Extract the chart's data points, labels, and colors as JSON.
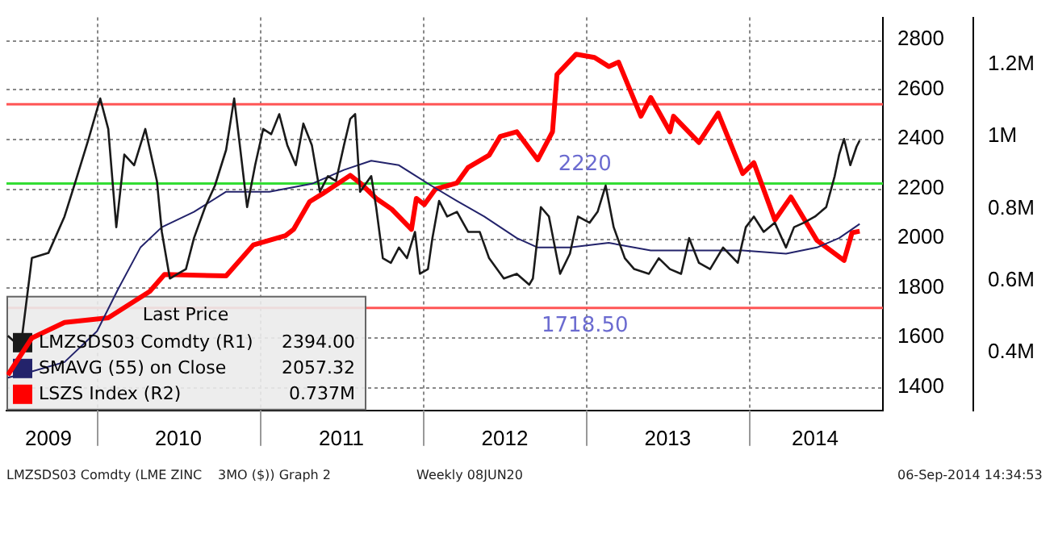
{
  "chart_data": {
    "type": "line",
    "legend_title": "Last Price",
    "legend": "bottom left",
    "grid": true,
    "annotations": [
      "2394.00",
      "2057.32",
      "0.737M",
      "LMZSDS03 Comdty (LME ZINC",
      "3MO ($)) Graph 2",
      "Weekly 08JUN20",
      "06-Sep-2014 14:34:53"
    ],
    "xlim": [
      "2009-06-12",
      "2014-10-27"
    ],
    "xticks": [
      {
        "value": "2009-09-14",
        "label": "2009"
      },
      {
        "value": "2010-01-01",
        "label": null
      },
      {
        "value": "2010-07-02",
        "label": "2010"
      },
      {
        "value": "2011-01-01",
        "label": null
      },
      {
        "value": "2011-07-02",
        "label": "2011"
      },
      {
        "value": "2012-01-01",
        "label": null
      },
      {
        "value": "2012-07-02",
        "label": "2012"
      },
      {
        "value": "2013-01-01",
        "label": null
      },
      {
        "value": "2013-07-02",
        "label": "2013"
      },
      {
        "value": "2014-01-01",
        "label": null
      },
      {
        "value": "2014-05-28",
        "label": "2014"
      }
    ],
    "ylim": [
      1305,
      2890
    ],
    "yticks": [
      1400,
      1600,
      1800,
      2000,
      2200,
      2400,
      2600,
      2800
    ],
    "y2lim": [
      0.24,
      1.33
    ],
    "y2ticks": [
      {
        "value": 0.4,
        "label": "0.4M"
      },
      {
        "value": 0.6,
        "label": "0.6M"
      },
      {
        "value": 0.8,
        "label": "0.8M"
      },
      {
        "value": 1,
        "label": "1M"
      },
      {
        "value": 1.2,
        "label": "1.2M"
      }
    ],
    "ref_lines": [
      {
        "axis": "y",
        "value": 2540,
        "color": "#ff5555"
      },
      {
        "axis": "y",
        "value": 2220,
        "label": "2220",
        "color": "#33dd33"
      },
      {
        "axis": "y",
        "value": 1718.5,
        "label": "1718.50",
        "color": "#ff5555"
      }
    ],
    "x": [
      "2009-06-15",
      "2009-07-14",
      "2009-08-08",
      "2009-09-14",
      "2009-10-20",
      "2009-11-14",
      "2009-12-13",
      "2010-01-08",
      "2010-01-26",
      "2010-02-13",
      "2010-03-03",
      "2010-03-25",
      "2010-04-19",
      "2010-05-15",
      "2010-05-26",
      "2010-06-13",
      "2010-07-01",
      "2010-07-19",
      "2010-08-06",
      "2010-08-31",
      "2010-09-22",
      "2010-10-17",
      "2010-11-04",
      "2010-11-15",
      "2010-12-03",
      "2010-12-21",
      "2011-01-08",
      "2011-01-26",
      "2011-02-13",
      "2011-03-03",
      "2011-03-22",
      "2011-04-08",
      "2011-04-27",
      "2011-05-15",
      "2011-06-02",
      "2011-06-20",
      "2011-07-08",
      "2011-07-22",
      "2011-08-02",
      "2011-08-13",
      "2011-09-07",
      "2011-09-18",
      "2011-10-03",
      "2011-10-21",
      "2011-11-08",
      "2011-11-26",
      "2011-12-14",
      "2011-12-25",
      "2012-01-12",
      "2012-01-22",
      "2012-02-06",
      "2012-02-24",
      "2012-03-17",
      "2012-04-11",
      "2012-05-07",
      "2012-05-28",
      "2012-06-30",
      "2012-07-29",
      "2012-08-26",
      "2012-09-03",
      "2012-09-21",
      "2012-10-09",
      "2012-11-03",
      "2012-11-25",
      "2012-12-13",
      "2013-01-08",
      "2013-01-26",
      "2013-02-13",
      "2013-03-03",
      "2013-03-28",
      "2013-04-18",
      "2013-05-21",
      "2013-06-12",
      "2013-07-07",
      "2013-08-01",
      "2013-08-19",
      "2013-09-10",
      "2013-10-05",
      "2013-11-03",
      "2013-12-06",
      "2013-12-24",
      "2014-01-11",
      "2014-02-02",
      "2014-02-27",
      "2014-03-24",
      "2014-04-11",
      "2014-05-03",
      "2014-05-28",
      "2014-06-22",
      "2014-07-11",
      "2014-07-21",
      "2014-08-01",
      "2014-08-15",
      "2014-08-29",
      "2014-09-05"
    ],
    "series": [
      {
        "name": "LMZSDS03 Comdty (R1)",
        "color": "#1a1a1a",
        "values": [
          1606,
          1560,
          1920,
          1940,
          2087,
          2230,
          2400,
          2563,
          2440,
          2044,
          2337,
          2294,
          2440,
          2230,
          2025,
          1837,
          1856,
          1875,
          2000,
          2125,
          2212,
          2356,
          2563,
          2400,
          2125,
          2294,
          2440,
          2419,
          2500,
          2375,
          2294,
          2462,
          2375,
          2187,
          2250,
          2230,
          2375,
          2481,
          2500,
          2187,
          2250,
          2125,
          1919,
          1900,
          1962,
          1919,
          2025,
          1856,
          1875,
          2000,
          2150,
          2087,
          2106,
          2025,
          2025,
          1919,
          1837,
          1856,
          1812,
          1837,
          2125,
          2087,
          1856,
          1937,
          2087,
          2062,
          2106,
          2212,
          2044,
          1919,
          1875,
          1856,
          1919,
          1875,
          1856,
          2000,
          1900,
          1875,
          1962,
          1900,
          2044,
          2087,
          2025,
          2062,
          1962,
          2044,
          2062,
          2087,
          2125,
          2250,
          2337,
          2400,
          2294,
          2369,
          2394
        ]
      },
      {
        "name": "SMAVG (55) on Close",
        "color": "#23236b",
        "x": [
          "2009-06-15",
          "2009-08-08",
          "2009-10-20",
          "2010-01-01",
          "2010-02-17",
          "2010-04-08",
          "2010-05-26",
          "2010-08-06",
          "2010-10-17",
          "2011-01-22",
          "2011-04-27",
          "2011-07-08",
          "2011-09-07",
          "2011-11-08",
          "2012-01-19",
          "2012-03-17",
          "2012-05-17",
          "2012-07-29",
          "2012-09-14",
          "2012-11-25",
          "2013-02-20",
          "2013-05-25",
          "2013-09-24",
          "2013-12-17",
          "2014-03-24",
          "2014-06-01",
          "2014-07-21",
          "2014-09-05"
        ],
        "values": [
          1437,
          1462,
          1500,
          1625,
          1794,
          1962,
          2044,
          2106,
          2187,
          2187,
          2219,
          2275,
          2312,
          2294,
          2212,
          2150,
          2087,
          2000,
          1962,
          1962,
          1981,
          1950,
          1950,
          1950,
          1937,
          1962,
          2000,
          2057
        ]
      },
      {
        "name": "LSZS Index (R2)",
        "color": "#ff0000",
        "axis": "y2",
        "x": [
          "2009-06-15",
          "2009-08-08",
          "2009-10-20",
          "2010-01-26",
          "2010-04-29",
          "2010-06-01",
          "2010-10-17",
          "2010-12-17",
          "2011-02-27",
          "2011-03-17",
          "2011-04-22",
          "2011-05-21",
          "2011-07-22",
          "2011-08-13",
          "2011-09-18",
          "2011-10-23",
          "2011-12-06",
          "2011-12-17",
          "2012-01-04",
          "2012-01-29",
          "2012-03-17",
          "2012-04-11",
          "2012-05-28",
          "2012-06-22",
          "2012-07-29",
          "2012-09-14",
          "2012-10-17",
          "2012-10-27",
          "2012-12-09",
          "2013-01-19",
          "2013-02-20",
          "2013-03-14",
          "2013-05-03",
          "2013-05-25",
          "2013-07-07",
          "2013-07-15",
          "2013-09-10",
          "2013-10-23",
          "2013-12-17",
          "2014-01-11",
          "2014-02-27",
          "2014-04-04",
          "2014-06-01",
          "2014-08-01",
          "2014-08-19",
          "2014-09-05"
        ],
        "values": [
          0.338,
          0.441,
          0.484,
          0.497,
          0.57,
          0.617,
          0.613,
          0.699,
          0.725,
          0.742,
          0.819,
          0.841,
          0.892,
          0.871,
          0.828,
          0.798,
          0.742,
          0.828,
          0.811,
          0.854,
          0.871,
          0.914,
          0.948,
          1.0,
          1.013,
          0.935,
          1.013,
          1.172,
          1.228,
          1.219,
          1.194,
          1.206,
          1.056,
          1.108,
          1.013,
          1.056,
          0.983,
          1.065,
          0.897,
          0.927,
          0.768,
          0.832,
          0.712,
          0.656,
          0.733,
          0.737
        ]
      }
    ]
  }
}
